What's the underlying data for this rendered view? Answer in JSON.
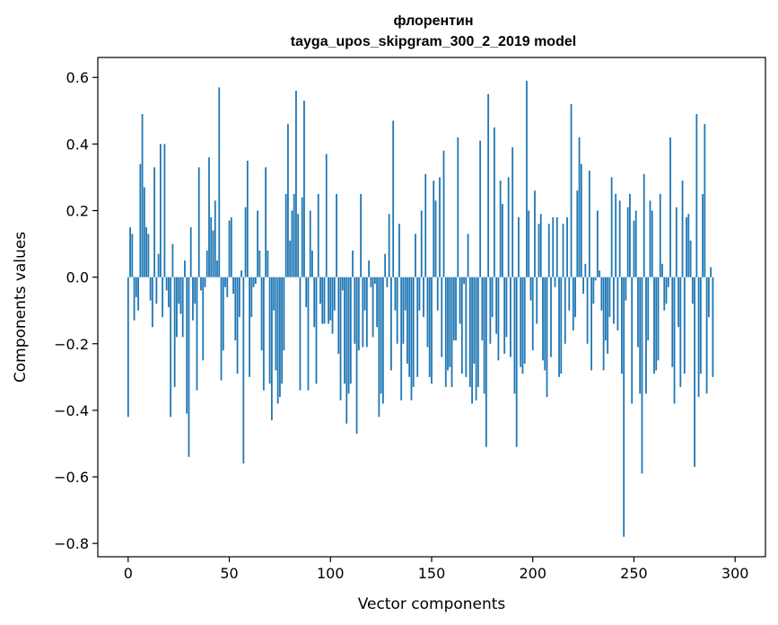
{
  "chart_data": {
    "type": "bar",
    "title": "флорентин",
    "subtitle": "tayga_upos_skipgram_300_2_2019 model",
    "xlabel": "Vector components",
    "ylabel": "Components values",
    "xlim": [
      -15,
      315
    ],
    "ylim": [
      -0.84,
      0.66
    ],
    "x_ticks": [
      0,
      50,
      100,
      150,
      200,
      250,
      300
    ],
    "x_tick_labels": [
      "0",
      "50",
      "100",
      "150",
      "200",
      "250",
      "300"
    ],
    "y_ticks": [
      0.6,
      0.4,
      0.2,
      0.0,
      -0.2,
      -0.4,
      -0.6,
      -0.8
    ],
    "y_tick_labels": [
      "0.6",
      "0.4",
      "0.2",
      "0.0",
      "−0.2",
      "−0.4",
      "−0.6",
      "−0.8"
    ],
    "grid": false,
    "bar_color": "#1f77b4",
    "values": [
      -0.42,
      0.15,
      0.13,
      -0.13,
      -0.06,
      -0.1,
      0.34,
      0.49,
      0.27,
      0.15,
      0.13,
      -0.07,
      -0.15,
      0.33,
      -0.08,
      0.07,
      0.4,
      -0.12,
      0.4,
      -0.04,
      -0.09,
      -0.42,
      0.1,
      -0.33,
      -0.18,
      -0.08,
      -0.11,
      -0.18,
      0.05,
      -0.41,
      -0.54,
      0.15,
      -0.13,
      -0.08,
      -0.34,
      0.33,
      -0.04,
      -0.25,
      -0.03,
      0.08,
      0.36,
      0.18,
      0.14,
      0.23,
      0.05,
      0.57,
      -0.31,
      -0.22,
      -0.03,
      -0.06,
      0.17,
      0.18,
      -0.05,
      -0.19,
      -0.29,
      -0.12,
      0.02,
      -0.56,
      0.21,
      0.35,
      -0.3,
      -0.12,
      -0.03,
      -0.02,
      0.2,
      0.08,
      -0.22,
      -0.34,
      0.33,
      0.08,
      -0.32,
      -0.43,
      -0.1,
      -0.28,
      -0.38,
      -0.36,
      -0.32,
      -0.22,
      0.25,
      0.46,
      0.11,
      0.2,
      0.25,
      0.56,
      0.19,
      -0.34,
      0.24,
      0.53,
      -0.09,
      -0.34,
      0.2,
      0.08,
      -0.15,
      -0.32,
      0.25,
      -0.08,
      -0.14,
      -0.14,
      0.37,
      -0.14,
      -0.13,
      -0.17,
      -0.1,
      0.25,
      -0.23,
      -0.37,
      -0.04,
      -0.32,
      -0.44,
      -0.35,
      -0.32,
      0.08,
      -0.2,
      -0.47,
      -0.22,
      0.25,
      -0.21,
      -0.1,
      -0.21,
      0.05,
      -0.03,
      -0.18,
      -0.02,
      -0.15,
      -0.42,
      -0.35,
      -0.38,
      0.07,
      -0.03,
      0.19,
      -0.28,
      0.47,
      -0.1,
      -0.2,
      0.16,
      -0.37,
      -0.2,
      -0.1,
      -0.26,
      -0.3,
      -0.37,
      -0.33,
      0.13,
      -0.3,
      -0.1,
      0.2,
      -0.12,
      0.31,
      -0.21,
      -0.3,
      -0.32,
      0.29,
      0.23,
      -0.1,
      0.3,
      -0.24,
      0.38,
      -0.33,
      -0.28,
      -0.27,
      -0.33,
      -0.19,
      -0.19,
      0.42,
      -0.14,
      -0.29,
      -0.02,
      -0.3,
      0.13,
      -0.33,
      -0.38,
      -0.26,
      -0.37,
      -0.33,
      0.41,
      -0.19,
      -0.35,
      -0.51,
      0.55,
      -0.2,
      -0.12,
      0.45,
      -0.17,
      -0.25,
      0.29,
      0.22,
      -0.23,
      -0.18,
      0.3,
      -0.24,
      0.39,
      -0.35,
      -0.51,
      0.18,
      -0.27,
      -0.29,
      -0.26,
      0.59,
      0.2,
      -0.07,
      -0.22,
      0.26,
      -0.14,
      0.16,
      0.19,
      -0.25,
      -0.28,
      -0.36,
      0.16,
      -0.24,
      0.18,
      -0.03,
      0.18,
      -0.3,
      -0.29,
      0.16,
      -0.2,
      0.18,
      -0.1,
      0.52,
      -0.16,
      -0.12,
      0.26,
      0.42,
      0.34,
      -0.05,
      0.04,
      -0.2,
      0.32,
      -0.28,
      -0.08,
      -0.01,
      0.2,
      0.02,
      -0.1,
      -0.28,
      -0.19,
      -0.23,
      -0.12,
      0.3,
      -0.14,
      0.25,
      -0.16,
      0.23,
      -0.29,
      -0.78,
      -0.07,
      0.21,
      0.25,
      -0.38,
      0.17,
      0.2,
      -0.21,
      -0.35,
      -0.59,
      0.31,
      -0.35,
      -0.19,
      0.23,
      0.2,
      -0.29,
      -0.28,
      -0.25,
      0.25,
      0.04,
      -0.1,
      -0.08,
      -0.03,
      0.42,
      -0.27,
      -0.38,
      0.21,
      -0.15,
      -0.33,
      0.29,
      -0.29,
      0.18,
      0.19,
      0.11,
      -0.08,
      -0.57,
      0.49,
      -0.36,
      -0.29,
      0.25,
      0.46,
      -0.35,
      -0.12,
      0.03,
      -0.3
    ]
  }
}
